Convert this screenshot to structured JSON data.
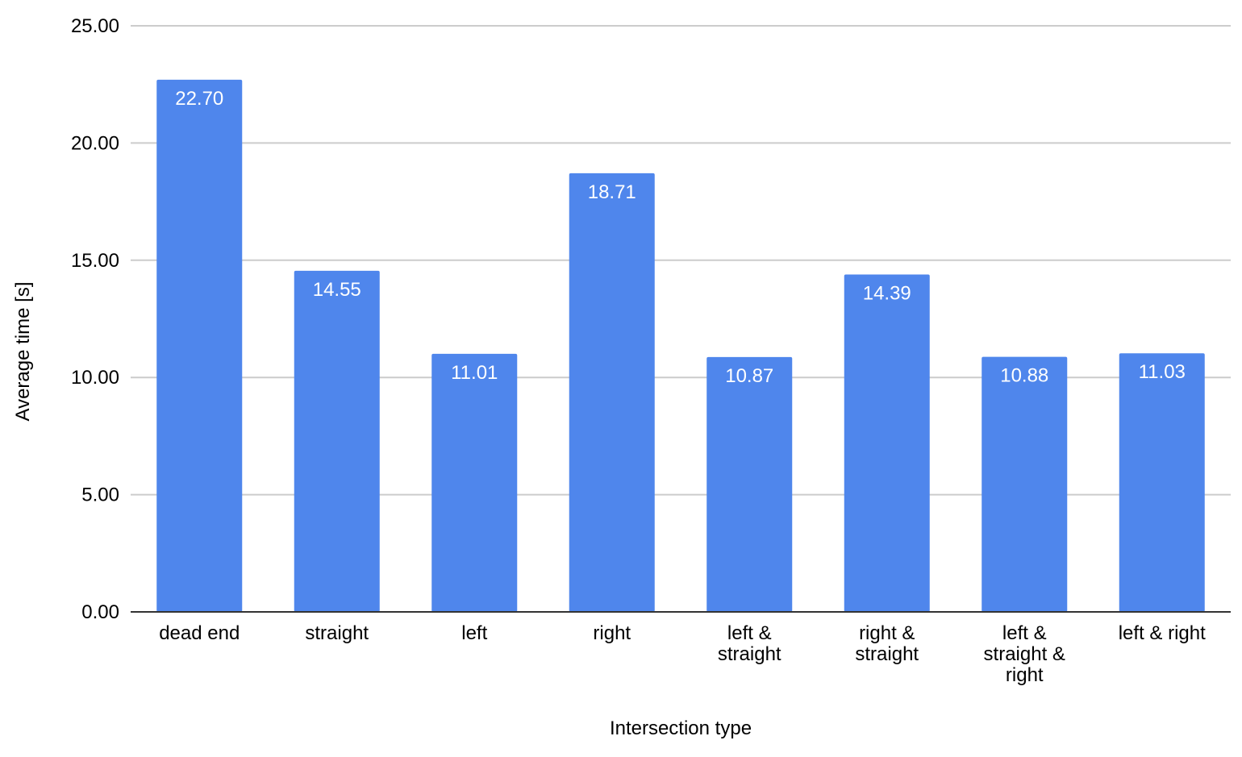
{
  "chart_data": {
    "type": "bar",
    "title": "",
    "xlabel": "Intersection type",
    "ylabel": "Average time [s]",
    "ylim": [
      0,
      25
    ],
    "yticks": [
      "0.00",
      "5.00",
      "10.00",
      "15.00",
      "20.00",
      "25.00"
    ],
    "grid": true,
    "legend": "none",
    "bar_color": "#4f86ec",
    "categories": [
      "dead end",
      "straight",
      "left",
      "right",
      "left & straight",
      "right & straight",
      "left & straight & right",
      "left & right"
    ],
    "category_lines": [
      [
        "dead end"
      ],
      [
        "straight"
      ],
      [
        "left"
      ],
      [
        "right"
      ],
      [
        "left &",
        "straight"
      ],
      [
        "right &",
        "straight"
      ],
      [
        "left &",
        "straight &",
        "right"
      ],
      [
        "left & right"
      ]
    ],
    "values": [
      22.7,
      14.55,
      11.01,
      18.71,
      10.87,
      14.39,
      10.88,
      11.03
    ],
    "data_labels": [
      "22.70",
      "14.55",
      "11.01",
      "18.71",
      "10.87",
      "14.39",
      "10.88",
      "11.03"
    ]
  }
}
